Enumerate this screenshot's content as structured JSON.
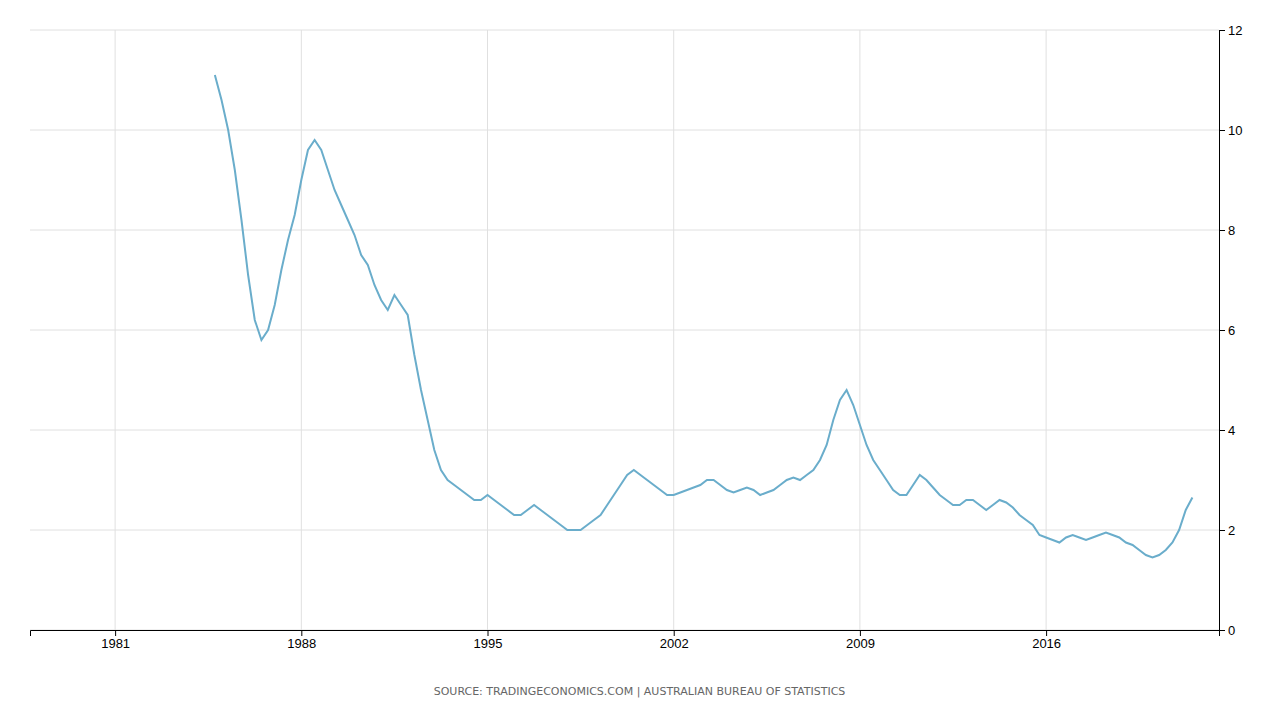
{
  "chart_data": {
    "type": "line",
    "color": "#6aadcb",
    "annotations": [
      "SOURCE: TRADINGECONOMICS.COM | AUSTRALIAN BUREAU OF STATISTICS"
    ],
    "xlim": [
      1977.8,
      2022.5
    ],
    "xticks": [
      1981,
      1988,
      1995,
      2002,
      2009,
      2016
    ],
    "ylim": [
      0,
      12
    ],
    "yticks": [
      0,
      2,
      4,
      6,
      8,
      10,
      12
    ],
    "grid": true,
    "x": [
      1984.75,
      1985.0,
      1985.25,
      1985.5,
      1985.75,
      1986.0,
      1986.25,
      1986.5,
      1986.75,
      1987.0,
      1987.25,
      1987.5,
      1987.75,
      1988.0,
      1988.25,
      1988.5,
      1988.75,
      1989.0,
      1989.25,
      1989.5,
      1989.75,
      1990.0,
      1990.25,
      1990.5,
      1990.75,
      1991.0,
      1991.25,
      1991.5,
      1991.75,
      1992.0,
      1992.25,
      1992.5,
      1992.75,
      1993.0,
      1993.25,
      1993.5,
      1993.75,
      1994.0,
      1994.25,
      1994.5,
      1994.75,
      1995.0,
      1995.25,
      1995.5,
      1995.75,
      1996.0,
      1996.25,
      1996.5,
      1996.75,
      1997.0,
      1997.25,
      1997.5,
      1997.75,
      1998.0,
      1998.25,
      1998.5,
      1998.75,
      1999.0,
      1999.25,
      1999.5,
      1999.75,
      2000.0,
      2000.25,
      2000.5,
      2000.75,
      2001.0,
      2001.25,
      2001.5,
      2001.75,
      2002.0,
      2002.25,
      2002.5,
      2002.75,
      2003.0,
      2003.25,
      2003.5,
      2003.75,
      2004.0,
      2004.25,
      2004.5,
      2004.75,
      2005.0,
      2005.25,
      2005.5,
      2005.75,
      2006.0,
      2006.25,
      2006.5,
      2006.75,
      2007.0,
      2007.25,
      2007.5,
      2007.75,
      2008.0,
      2008.25,
      2008.5,
      2008.75,
      2009.0,
      2009.25,
      2009.5,
      2009.75,
      2010.0,
      2010.25,
      2010.5,
      2010.75,
      2011.0,
      2011.25,
      2011.5,
      2011.75,
      2012.0,
      2012.25,
      2012.5,
      2012.75,
      2013.0,
      2013.25,
      2013.5,
      2013.75,
      2014.0,
      2014.25,
      2014.5,
      2014.75,
      2015.0,
      2015.25,
      2015.5,
      2015.75,
      2016.0,
      2016.25,
      2016.5,
      2016.75,
      2017.0,
      2017.25,
      2017.5,
      2017.75,
      2018.0,
      2018.25,
      2018.5,
      2018.75,
      2019.0,
      2019.25,
      2019.5,
      2019.75,
      2020.0,
      2020.25,
      2020.5,
      2020.75,
      2021.0,
      2021.25,
      2021.5
    ],
    "values": [
      11.1,
      10.6,
      10.0,
      9.2,
      8.2,
      7.1,
      6.2,
      5.8,
      6.0,
      6.5,
      7.2,
      7.8,
      8.3,
      9.0,
      9.6,
      9.8,
      9.6,
      9.2,
      8.8,
      8.5,
      8.2,
      7.9,
      7.5,
      7.3,
      6.9,
      6.6,
      6.4,
      6.7,
      6.5,
      6.3,
      5.5,
      4.8,
      4.2,
      3.6,
      3.2,
      3.0,
      2.9,
      2.8,
      2.7,
      2.6,
      2.6,
      2.7,
      2.6,
      2.5,
      2.4,
      2.3,
      2.3,
      2.4,
      2.5,
      2.4,
      2.3,
      2.2,
      2.1,
      2.0,
      2.0,
      2.0,
      2.1,
      2.2,
      2.3,
      2.5,
      2.7,
      2.9,
      3.1,
      3.2,
      3.1,
      3.0,
      2.9,
      2.8,
      2.7,
      2.7,
      2.75,
      2.8,
      2.85,
      2.9,
      3.0,
      3.0,
      2.9,
      2.8,
      2.75,
      2.8,
      2.85,
      2.8,
      2.7,
      2.75,
      2.8,
      2.9,
      3.0,
      3.05,
      3.0,
      3.1,
      3.2,
      3.4,
      3.7,
      4.2,
      4.6,
      4.8,
      4.5,
      4.1,
      3.7,
      3.4,
      3.2,
      3.0,
      2.8,
      2.7,
      2.7,
      2.9,
      3.1,
      3.0,
      2.85,
      2.7,
      2.6,
      2.5,
      2.5,
      2.6,
      2.6,
      2.5,
      2.4,
      2.5,
      2.6,
      2.55,
      2.45,
      2.3,
      2.2,
      2.1,
      1.9,
      1.85,
      1.8,
      1.75,
      1.85,
      1.9,
      1.85,
      1.8,
      1.85,
      1.9,
      1.95,
      1.9,
      1.85,
      1.75,
      1.7,
      1.6,
      1.5,
      1.45,
      1.5,
      1.6,
      1.75,
      2.0,
      2.4,
      2.65
    ]
  }
}
